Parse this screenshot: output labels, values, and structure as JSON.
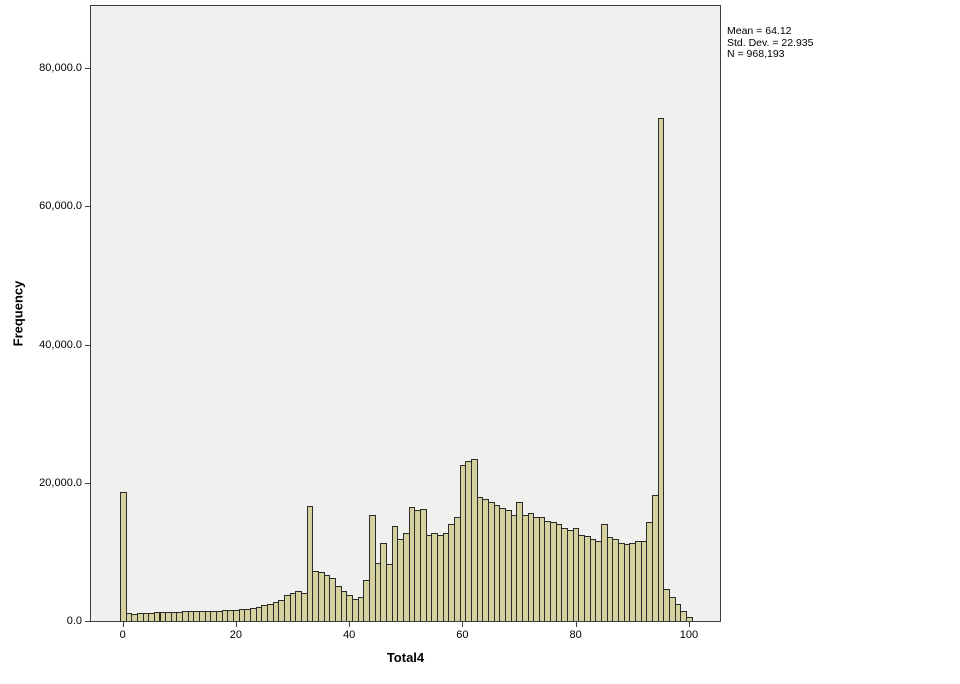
{
  "stats_box": {
    "mean_line": "Mean = 64.12",
    "stddev_line": "Std. Dev. = 22.935",
    "n_line": "N = 968,193"
  },
  "chart_data": {
    "type": "bar",
    "subtype": "histogram",
    "title": "",
    "xlabel": "Total4",
    "ylabel": "Frequency",
    "legend": "none",
    "grid": false,
    "plot_bg_color": "#f0f0ee",
    "bar_fill_color": "#d5d19e",
    "bar_border_color": "#2b2b2b",
    "frame_color": "#3f3f3f",
    "xlim": [
      -5.6,
      105.5
    ],
    "ylim": [
      0,
      89000
    ],
    "x_ticks": [
      0,
      20,
      40,
      60,
      80,
      100
    ],
    "x_tick_labels": [
      "0",
      "20",
      "40",
      "60",
      "80",
      "100"
    ],
    "y_ticks": [
      0,
      20000,
      40000,
      60000,
      80000
    ],
    "y_tick_labels": [
      "0.0",
      "20,000.0",
      "40,000.0",
      "60,000.0",
      "80,000.0"
    ],
    "bin_width": 1,
    "bin_centers_note": "bins centered on integer scores 0-100",
    "x": [
      0,
      1,
      2,
      3,
      4,
      5,
      6,
      7,
      8,
      9,
      10,
      11,
      12,
      13,
      14,
      15,
      16,
      17,
      18,
      19,
      20,
      21,
      22,
      23,
      24,
      25,
      26,
      27,
      28,
      29,
      30,
      31,
      32,
      33,
      34,
      35,
      36,
      37,
      38,
      39,
      40,
      41,
      42,
      43,
      44,
      45,
      46,
      47,
      48,
      49,
      50,
      51,
      52,
      53,
      54,
      55,
      56,
      57,
      58,
      59,
      60,
      61,
      62,
      63,
      64,
      65,
      66,
      67,
      68,
      69,
      70,
      71,
      72,
      73,
      74,
      75,
      76,
      77,
      78,
      79,
      80,
      81,
      82,
      83,
      84,
      85,
      86,
      87,
      88,
      89,
      90,
      91,
      92,
      93,
      94,
      95,
      96,
      97,
      98,
      99,
      100
    ],
    "values": [
      18600,
      1200,
      1050,
      1100,
      1150,
      1200,
      1250,
      1300,
      1300,
      1350,
      1350,
      1400,
      1400,
      1450,
      1450,
      1500,
      1450,
      1500,
      1550,
      1550,
      1600,
      1700,
      1800,
      1900,
      2100,
      2300,
      2500,
      2700,
      3100,
      3700,
      4100,
      4400,
      4000,
      16600,
      7200,
      7100,
      6600,
      6200,
      5100,
      4400,
      3700,
      3200,
      3500,
      5900,
      15300,
      8400,
      11300,
      8200,
      13800,
      11800,
      12800,
      16500,
      16000,
      16200,
      12500,
      12800,
      12500,
      12800,
      14000,
      15000,
      22600,
      23100,
      23500,
      17900,
      17600,
      17200,
      16800,
      16300,
      16000,
      15400,
      17200,
      15400,
      15700,
      15000,
      15000,
      14500,
      14300,
      14000,
      13500,
      13200,
      13500,
      12500,
      12300,
      11800,
      11600,
      14000,
      12100,
      11800,
      11300,
      11100,
      11300,
      11600,
      11600,
      14300,
      18200,
      72800,
      4700,
      3500,
      2500,
      1500,
      600
    ]
  }
}
